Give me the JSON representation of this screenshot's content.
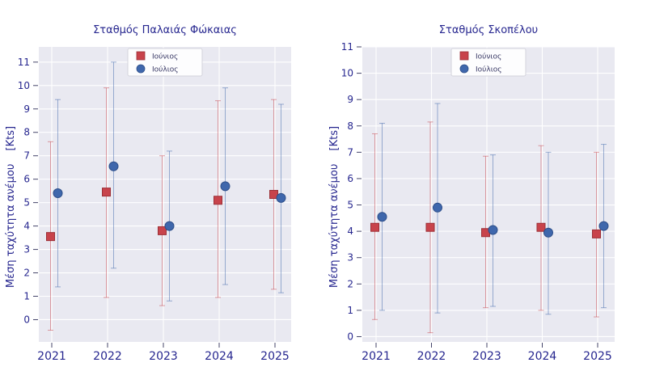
{
  "figure": {
    "background": "#ffffff"
  },
  "styles": {
    "plot_bg": "#e9e9f1",
    "grid": "#ffffff",
    "text": "#26268f",
    "tick": "#44446a",
    "legend_text": "#3a3a66",
    "legend_bg": "#fdfdfe",
    "legend_border": "#d4d4dc"
  },
  "chart_data": [
    {
      "type": "scatter",
      "subtype": "errorbar",
      "title": "Σταθμός Παλαιάς Φώκαιας",
      "ylabel": "Μέση ταχύτητα ανέμου",
      "ylabel_unit": "[Kts]",
      "categories": [
        "2021",
        "2022",
        "2023",
        "2024",
        "2025"
      ],
      "yticks": [
        0,
        1,
        2,
        3,
        4,
        5,
        6,
        7,
        8,
        9,
        10,
        11
      ],
      "ylim": [
        -0.95,
        11.65
      ],
      "grid": true,
      "legend_position": "upper center",
      "series": [
        {
          "name": "Ιούνιος",
          "marker": "square",
          "color": "#c8434b",
          "edge": "#9c3037",
          "values": [
            3.55,
            5.45,
            3.8,
            5.1,
            5.35
          ],
          "err_min": [
            -0.45,
            0.95,
            0.6,
            0.95,
            1.3
          ],
          "err_max": [
            7.6,
            9.9,
            7.0,
            9.35,
            9.4
          ]
        },
        {
          "name": "Ιούλιος",
          "marker": "circle",
          "color": "#3f67ac",
          "edge": "#2e4f8a",
          "values": [
            5.4,
            6.55,
            4.0,
            5.7,
            5.2
          ],
          "err_min": [
            1.4,
            2.2,
            0.8,
            1.5,
            1.15
          ],
          "err_max": [
            9.4,
            11.0,
            7.2,
            9.9,
            9.2
          ]
        }
      ]
    },
    {
      "type": "scatter",
      "subtype": "errorbar",
      "title": "Σταθμός Σκοπέλου",
      "ylabel": "Μέση ταχύτητα ανέμου",
      "ylabel_unit": "[Kts]",
      "categories": [
        "2021",
        "2022",
        "2023",
        "2024",
        "2025"
      ],
      "yticks": [
        0,
        1,
        2,
        3,
        4,
        5,
        6,
        7,
        8,
        9,
        10,
        11
      ],
      "ylim": [
        -0.2,
        11.0
      ],
      "grid": true,
      "legend_position": "upper center",
      "series": [
        {
          "name": "Ιούνιος",
          "marker": "square",
          "color": "#c8434b",
          "edge": "#9c3037",
          "values": [
            4.15,
            4.15,
            3.95,
            4.15,
            3.9
          ],
          "err_min": [
            0.65,
            0.15,
            1.1,
            1.0,
            0.75
          ],
          "err_max": [
            7.7,
            8.15,
            6.85,
            7.25,
            7.0
          ]
        },
        {
          "name": "Ιούλιος",
          "marker": "circle",
          "color": "#3f67ac",
          "edge": "#2e4f8a",
          "values": [
            4.55,
            4.9,
            4.05,
            3.95,
            4.2
          ],
          "err_min": [
            1.0,
            0.9,
            1.15,
            0.85,
            1.1
          ],
          "err_max": [
            8.1,
            8.85,
            6.9,
            7.0,
            7.3
          ]
        }
      ]
    }
  ]
}
